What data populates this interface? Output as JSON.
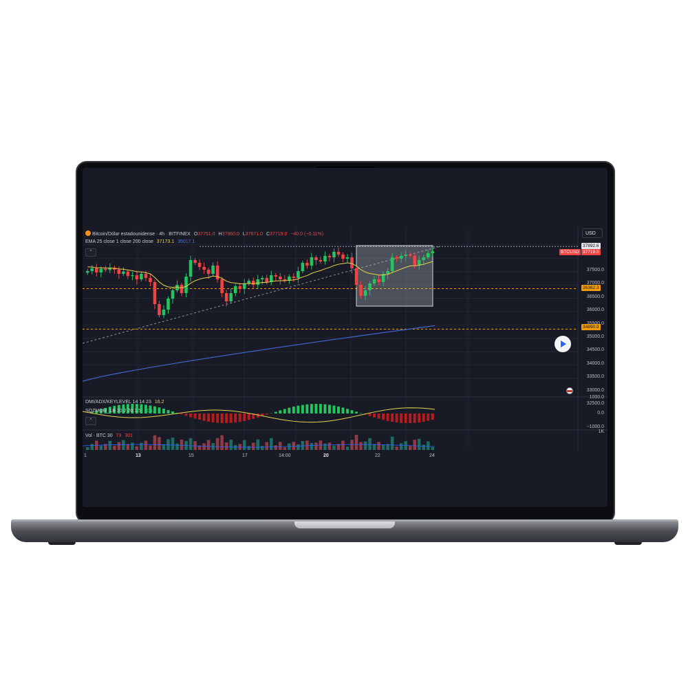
{
  "chart": {
    "title": "Bitcoin/Dólar estadounidense · 4h · BITFINEX",
    "ohlc": {
      "o_label": "O",
      "o": "37751.0",
      "h_label": "H",
      "h": "37960.0",
      "l_label": "L",
      "l": "37671.0",
      "c_label": "C",
      "c": "37719.0",
      "change": "−40.0 (−0.11%)"
    },
    "ema_label": "EMA 25 close 1 close 200 close",
    "ema_value_1": "37173.1",
    "ema_value_2": "35017.1",
    "currency": "USD",
    "symbol_tag": "BTCUSD",
    "price_tags": {
      "top": "37892.6",
      "current": "37719.0",
      "level_1": "36362.3",
      "level_2": "34890.9"
    },
    "price_axis": [
      "37500.0",
      "37000.0",
      "36500.0",
      "36000.0",
      "35500.0",
      "35000.0",
      "34500.0",
      "34000.0",
      "33500.0",
      "33000.0",
      "32500.0"
    ],
    "indicator_1_label": "DMI/ADX/KEYLEVEL 14 14 23",
    "indicator_1_value": "16.2",
    "indicator_2_label": "SQZMOM_LB 20 2 20 1.5",
    "indicator_2_value": "708.2",
    "indicator_axis": [
      "1000.0",
      "0.0",
      "−1000.0"
    ],
    "volume_label": "Vol · BTC 30",
    "volume_value_1": "73",
    "volume_value_2": "301",
    "volume_axis": "1K",
    "time_axis": [
      {
        "label": "1",
        "bold": false
      },
      {
        "label": "13",
        "bold": true
      },
      {
        "label": "15",
        "bold": false
      },
      {
        "label": "17",
        "bold": false
      },
      {
        "label": "14:00",
        "bold": false
      },
      {
        "label": "20",
        "bold": true
      },
      {
        "label": "22",
        "bold": false
      },
      {
        "label": "24",
        "bold": false
      }
    ],
    "colors": {
      "up": "#22c55e",
      "down": "#ef4444",
      "ema_short": "#e8d44d",
      "ema_long": "#3f66d0",
      "level": "#f59e0b",
      "background": "#181b25"
    },
    "icons": [
      "bitcoin-logo-icon",
      "chevron-up-icon",
      "play-icon",
      "us-flag-icon"
    ]
  },
  "chart_data": {
    "type": "candlestick",
    "interval": "4h",
    "ylim": [
      32500,
      38000
    ],
    "candles_close": [
      37000,
      37100,
      36950,
      37080,
      37040,
      37120,
      37050,
      36900,
      36980,
      36820,
      36850,
      36700,
      36900,
      36750,
      36600,
      35800,
      35400,
      35600,
      36000,
      36300,
      36500,
      36200,
      36800,
      37400,
      37300,
      37150,
      37050,
      36900,
      37200,
      36700,
      36200,
      35900,
      36200,
      36450,
      36350,
      36550,
      36650,
      36500,
      36700,
      36750,
      36600,
      36850,
      36800,
      36700,
      36650,
      36800,
      36750,
      37000,
      37300,
      37200,
      37500,
      37400,
      37350,
      37550,
      37500,
      37700,
      37600,
      37450,
      37500,
      37100,
      36500,
      36100,
      36300,
      36550,
      36700,
      36600,
      36900,
      37000,
      37500,
      37450,
      37550,
      37600,
      37550,
      37200,
      37400,
      37500,
      37650,
      37719
    ],
    "ema_25_start": 37173.1,
    "ema_200_end": 35017.1,
    "levels": [
      36362.3,
      34890.9,
      37892.6
    ]
  }
}
